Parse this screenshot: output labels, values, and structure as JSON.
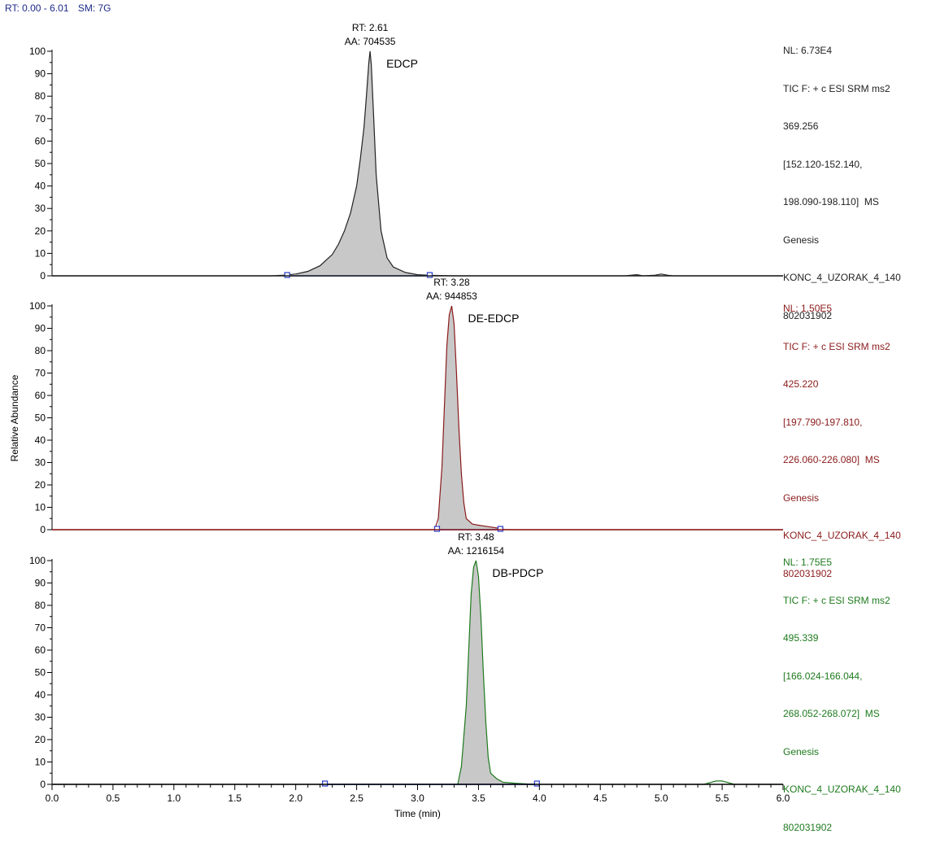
{
  "header": {
    "rt_range": "RT: 0.00 - 6.01",
    "smoothing": "SM: 7G"
  },
  "panels": [
    {
      "color": "#222222",
      "info": [
        "NL: 6.73E4",
        "TIC F: + c ESI SRM ms2",
        "369.256",
        "[152.120-152.140,",
        "198.090-198.110]  MS",
        "Genesis",
        "KONC_4_UZORAK_4_140",
        "802031902"
      ],
      "peak_rt_label": "RT: 2.61",
      "peak_area_label": "AA: 704535",
      "compound": "EDCP"
    },
    {
      "color": "#8b1a1a",
      "info": [
        "NL: 1.50E5",
        "TIC F: + c ESI SRM ms2",
        "425.220",
        "[197.790-197.810,",
        "226.060-226.080]  MS",
        "Genesis",
        "KONC_4_UZORAK_4_140",
        "802031902"
      ],
      "peak_rt_label": "RT: 3.28",
      "peak_area_label": "AA: 944853",
      "compound": "DE-EDCP"
    },
    {
      "color": "#1e7a1e",
      "info": [
        "NL: 1.75E5",
        "TIC F: + c ESI SRM ms2",
        "495.339",
        "[166.024-166.044,",
        "268.052-268.072]  MS",
        "Genesis",
        "KONC_4_UZORAK_4_140",
        "802031902"
      ],
      "peak_rt_label": "RT: 3.48",
      "peak_area_label": "AA: 1216154",
      "compound": "DB-PDCP"
    }
  ],
  "chart_data": {
    "type": "area",
    "xlabel": "Time (min)",
    "ylabel": "Relative Abundance",
    "xlim": [
      0.0,
      6.0
    ],
    "ylim": [
      0,
      100
    ],
    "x_ticks": [
      "0.0",
      "0.5",
      "1.0",
      "1.5",
      "2.0",
      "2.5",
      "3.0",
      "3.5",
      "4.0",
      "4.5",
      "5.0",
      "5.5",
      "6.0"
    ],
    "y_ticks": [
      "0",
      "10",
      "20",
      "30",
      "40",
      "50",
      "60",
      "70",
      "80",
      "90",
      "100"
    ],
    "series": [
      {
        "name": "EDCP",
        "peak_rt": 2.61,
        "peak_area": 704535,
        "integration_start": 1.93,
        "integration_end": 3.1,
        "x": [
          0.0,
          1.8,
          1.9,
          2.0,
          2.1,
          2.2,
          2.3,
          2.35,
          2.4,
          2.45,
          2.5,
          2.53,
          2.56,
          2.58,
          2.6,
          2.61,
          2.62,
          2.64,
          2.66,
          2.7,
          2.75,
          2.8,
          2.9,
          3.0,
          3.1,
          3.3,
          4.7,
          4.8,
          4.85,
          4.95,
          5.0,
          5.05,
          5.1,
          6.0
        ],
        "y": [
          0,
          0,
          0.3,
          0.8,
          2.0,
          4.5,
          9.5,
          14,
          20,
          28,
          40,
          52,
          66,
          80,
          95,
          100,
          94,
          70,
          45,
          20,
          8,
          4,
          1.5,
          0.5,
          0.2,
          0,
          0,
          0.5,
          0,
          0.3,
          0.8,
          0.3,
          0,
          0
        ]
      },
      {
        "name": "DE-EDCP",
        "peak_rt": 3.28,
        "peak_area": 944853,
        "integration_start": 3.16,
        "integration_end": 3.68,
        "x": [
          0.0,
          3.14,
          3.17,
          3.2,
          3.22,
          3.24,
          3.26,
          3.28,
          3.3,
          3.32,
          3.34,
          3.36,
          3.38,
          3.4,
          3.45,
          3.5,
          3.6,
          3.68,
          3.72,
          6.0
        ],
        "y": [
          0,
          0,
          5,
          28,
          55,
          82,
          96,
          100,
          92,
          70,
          45,
          25,
          12,
          5,
          2.5,
          2.0,
          1.2,
          0.5,
          0,
          0
        ]
      },
      {
        "name": "DB-PDCP",
        "peak_rt": 3.48,
        "peak_area": 1216154,
        "integration_start": 2.24,
        "integration_end": 3.98,
        "x": [
          0.0,
          3.33,
          3.36,
          3.4,
          3.42,
          3.44,
          3.46,
          3.48,
          3.5,
          3.52,
          3.54,
          3.56,
          3.58,
          3.6,
          3.65,
          3.7,
          3.8,
          3.9,
          4.0,
          5.35,
          5.45,
          5.5,
          5.6,
          6.0
        ],
        "y": [
          0,
          0,
          8,
          35,
          60,
          85,
          97,
          100,
          93,
          75,
          50,
          28,
          12,
          5,
          2.5,
          1.0,
          0.5,
          0.2,
          0,
          0,
          1.5,
          1.5,
          0,
          0
        ]
      }
    ]
  }
}
